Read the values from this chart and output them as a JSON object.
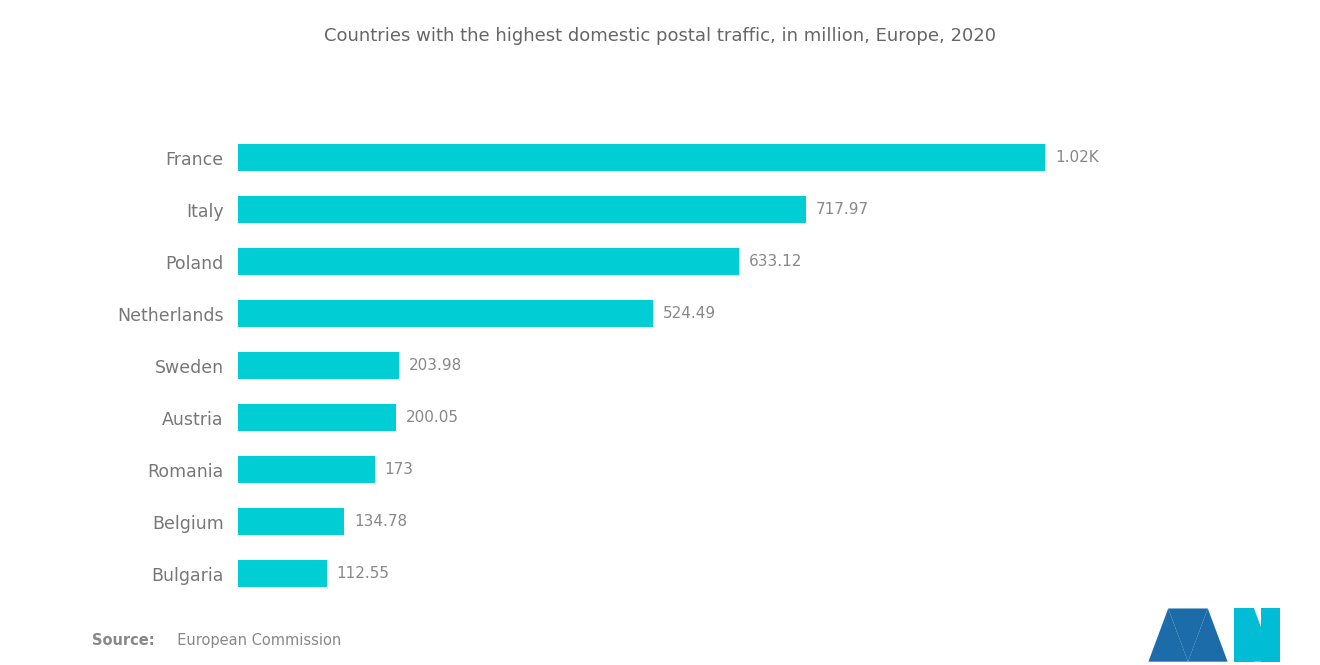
{
  "title": "Countries with the highest domestic postal traffic, in million, Europe, 2020",
  "countries": [
    "France",
    "Italy",
    "Poland",
    "Netherlands",
    "Sweden",
    "Austria",
    "Romania",
    "Belgium",
    "Bulgaria"
  ],
  "values": [
    1020,
    717.97,
    633.12,
    524.49,
    203.98,
    200.05,
    173,
    134.78,
    112.55
  ],
  "labels": [
    "1.02K",
    "717.97",
    "633.12",
    "524.49",
    "203.98",
    "200.05",
    "173",
    "134.78",
    "112.55"
  ],
  "bar_color": "#00CDD4",
  "background_color": "#ffffff",
  "title_color": "#666666",
  "label_color": "#888888",
  "ytick_color": "#777777",
  "source_bold": "Source:",
  "source_rest": "  European Commission",
  "logo_blue": "#1B6CA8",
  "logo_teal": "#00BCD4"
}
